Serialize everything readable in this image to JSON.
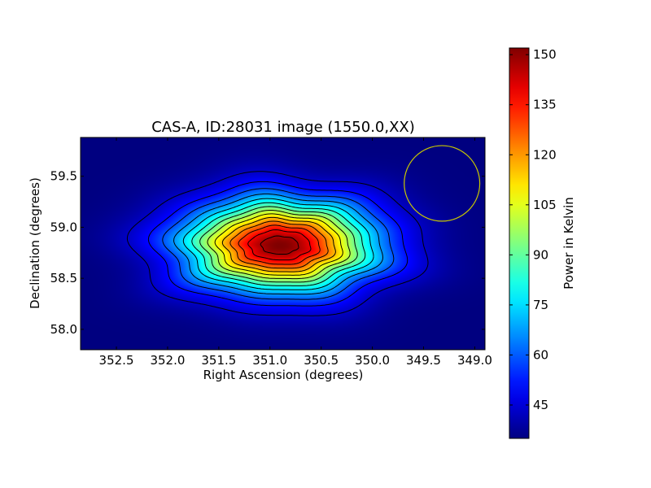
{
  "chart_data": {
    "type": "heatmap",
    "title": "CAS-A, ID:28031 image (1550.0,XX)",
    "xlabel": "Right Ascension (degrees)",
    "ylabel": "Declination (degrees)",
    "xlim": [
      352.85,
      348.9
    ],
    "ylim": [
      57.8,
      59.88
    ],
    "x_ticks": [
      352.5,
      352.0,
      351.5,
      351.0,
      350.5,
      350.0,
      349.5,
      349.0
    ],
    "x_tick_labels": [
      "352.5",
      "352.0",
      "351.5",
      "351.0",
      "350.5",
      "350.0",
      "349.5",
      "349.0"
    ],
    "y_ticks": [
      58.0,
      58.5,
      59.0,
      59.5
    ],
    "y_tick_labels": [
      "58.0",
      "58.5",
      "59.0",
      "59.5"
    ],
    "source_peak": {
      "ra": 350.9,
      "dec": 58.82,
      "value": 152
    },
    "background_value": 35,
    "contour_levels": [
      43,
      51,
      59,
      67,
      75,
      83,
      91,
      99,
      107,
      115,
      123,
      131,
      139,
      147
    ],
    "beam_circle": {
      "ra": 349.32,
      "dec": 59.43,
      "radius_deg": 0.37,
      "color": "#c8c800"
    },
    "colorbar": {
      "label": "Power in Kelvin",
      "min": 35,
      "max": 152,
      "ticks": [
        45,
        60,
        75,
        90,
        105,
        120,
        135,
        150
      ],
      "tick_labels": [
        "45",
        "60",
        "75",
        "90",
        "105",
        "120",
        "135",
        "150"
      ],
      "colormap": "jet"
    },
    "grid": false
  }
}
